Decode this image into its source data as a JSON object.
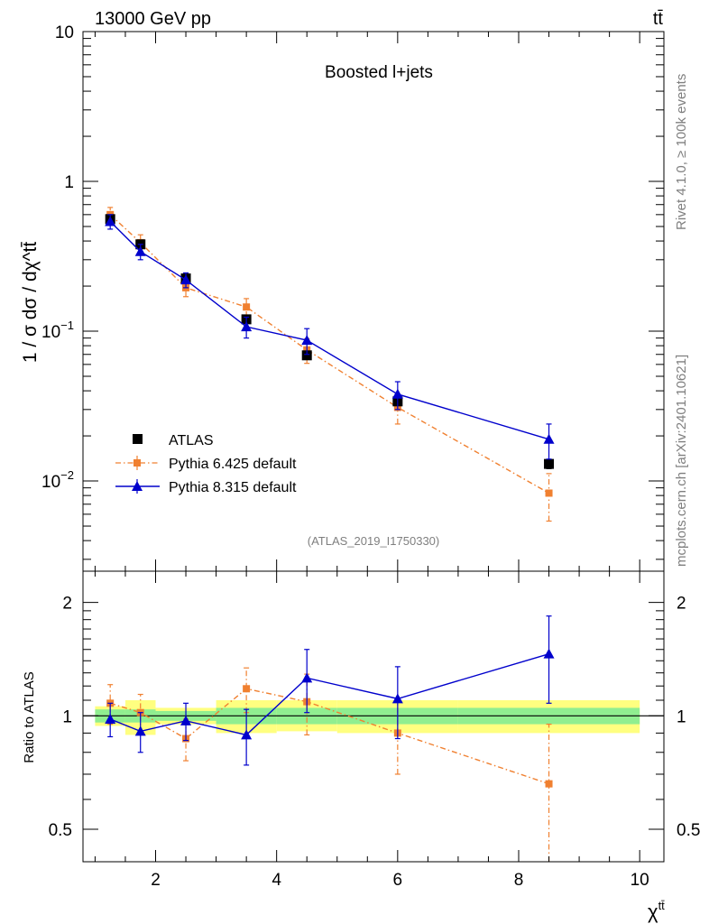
{
  "header": {
    "energy_label": "13000 GeV pp",
    "process_label": "tt̄",
    "side_label_top": "Rivet 4.1.0, ≥ 100k events",
    "side_label_bottom": "mcplots.cern.ch [arXiv:2401.10621]"
  },
  "chart_data": [
    {
      "type": "line",
      "panel": "main",
      "title": "Boosted l+jets",
      "xlabel": "χ^tt̄",
      "ylabel": "1 / σ dσ / dχ^tt̄",
      "yscale": "log",
      "xlim": [
        0.8,
        10.4
      ],
      "ylim": [
        0.0025,
        10
      ],
      "analysis_tag": "(ATLAS_2019_I1750330)",
      "y_tick_labels": [
        "10",
        "1",
        "10^-1",
        "10^-2"
      ],
      "legend_position": "lower-left",
      "bins": [
        [
          1,
          1.5
        ],
        [
          1.5,
          2
        ],
        [
          2,
          3
        ],
        [
          3,
          4
        ],
        [
          4,
          5
        ],
        [
          5,
          7
        ],
        [
          7,
          10
        ]
      ],
      "series": [
        {
          "name": "ATLAS",
          "x": [
            1.25,
            1.75,
            2.5,
            3.5,
            4.5,
            6,
            8.5
          ],
          "y": [
            0.56,
            0.38,
            0.225,
            0.12,
            0.069,
            0.034,
            0.013
          ],
          "yerr": [
            0.03,
            0.02,
            0.012,
            0.007,
            0.004,
            0.002,
            0.0009
          ],
          "color": "#000000",
          "marker": "square",
          "line": "none"
        },
        {
          "name": "Pythia 6.425 default",
          "x": [
            1.25,
            1.75,
            2.5,
            3.5,
            4.5,
            6,
            8.5
          ],
          "y": [
            0.6,
            0.39,
            0.195,
            0.145,
            0.075,
            0.031,
            0.0083
          ],
          "yerr": [
            0.07,
            0.05,
            0.025,
            0.02,
            0.014,
            0.007,
            0.0029
          ],
          "color": "#f08030",
          "marker": "square-small",
          "line": "dashdot"
        },
        {
          "name": "Pythia 8.315 default",
          "x": [
            1.25,
            1.75,
            2.5,
            3.5,
            4.5,
            6,
            8.5
          ],
          "y": [
            0.54,
            0.34,
            0.22,
            0.107,
            0.087,
            0.038,
            0.019
          ],
          "yerr": [
            0.06,
            0.04,
            0.025,
            0.017,
            0.017,
            0.008,
            0.005
          ],
          "color": "#0000cc",
          "marker": "triangle",
          "line": "solid"
        }
      ]
    },
    {
      "type": "line",
      "panel": "ratio",
      "ylabel": "Ratio to ATLAS",
      "xlabel": "χ^tt̄",
      "xlim": [
        0.8,
        10.4
      ],
      "ylim": [
        0.41,
        2.42
      ],
      "yscale": "log",
      "y_ticks": [
        0.5,
        1,
        2
      ],
      "y_tick_labels": [
        "0.5",
        "1",
        "2"
      ],
      "x_ticks": [
        2,
        4,
        6,
        8,
        10
      ],
      "x_tick_labels": [
        "2",
        "4",
        "6",
        "8",
        "10"
      ],
      "bands": {
        "inner_color": "#90ee90",
        "outer_color": "#ffff80",
        "inner": [
          [
            0.96,
            1.04
          ],
          [
            0.96,
            1.04
          ],
          [
            0.97,
            1.03
          ],
          [
            0.95,
            1.05
          ],
          [
            0.95,
            1.05
          ],
          [
            0.95,
            1.05
          ],
          [
            0.95,
            1.05
          ]
        ],
        "outer": [
          [
            0.94,
            1.06
          ],
          [
            0.89,
            1.1
          ],
          [
            0.95,
            1.05
          ],
          [
            0.9,
            1.1
          ],
          [
            0.91,
            1.1
          ],
          [
            0.9,
            1.1
          ],
          [
            0.9,
            1.1
          ]
        ]
      },
      "series": [
        {
          "name": "Pythia 6.425 default",
          "x": [
            1.25,
            1.75,
            2.5,
            3.5,
            4.5,
            6,
            8.5
          ],
          "y": [
            1.08,
            1.02,
            0.87,
            1.18,
            1.09,
            0.9,
            0.66
          ],
          "yerr": [
            0.13,
            0.12,
            0.11,
            0.16,
            0.2,
            0.2,
            0.29
          ],
          "color": "#f08030"
        },
        {
          "name": "Pythia 8.315 default",
          "x": [
            1.25,
            1.75,
            2.5,
            3.5,
            4.5,
            6,
            8.5
          ],
          "y": [
            0.98,
            0.91,
            0.97,
            0.89,
            1.26,
            1.11,
            1.46
          ],
          "yerr": [
            0.1,
            0.11,
            0.11,
            0.15,
            0.24,
            0.24,
            0.38
          ],
          "color": "#0000cc"
        }
      ]
    }
  ]
}
